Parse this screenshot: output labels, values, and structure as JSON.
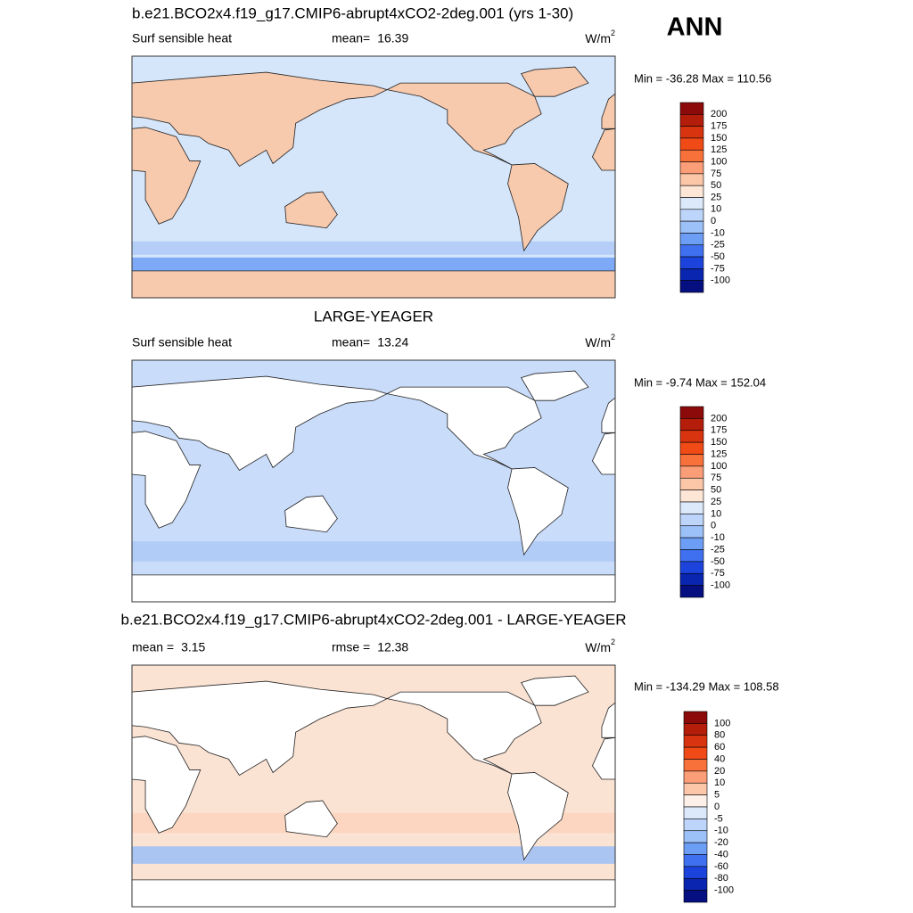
{
  "figure_label": "ANN",
  "panels": [
    {
      "title": "b.e21.BCO2x4.f19_g17.CMIP6-abrupt4xCO2-2deg.001 (yrs 1-30)",
      "variable": "Surf sensible heat",
      "stats": [
        {
          "label": "mean=",
          "value": 16.39
        }
      ],
      "units": {
        "base": "W/m",
        "sup": "2"
      },
      "min_max": "Min = -36.28 Max = 110.56",
      "colorbar": {
        "labels": [
          200,
          175,
          150,
          125,
          100,
          75,
          50,
          25,
          10,
          0,
          -10,
          -25,
          -50,
          -75,
          -100
        ],
        "colors": [
          "#8c0a0a",
          "#b31d0a",
          "#d8340f",
          "#f04a16",
          "#f8703a",
          "#fb9d77",
          "#fcc6a8",
          "#fde6d6",
          "#dbe9fb",
          "#bdd5fa",
          "#9cc0f8",
          "#6d9ef6",
          "#3f70f0",
          "#1c44dc",
          "#0a25b0",
          "#050f80"
        ]
      }
    },
    {
      "title": "LARGE-YEAGER",
      "variable": "Surf sensible heat",
      "stats": [
        {
          "label": "mean=",
          "value": 13.24
        }
      ],
      "units": {
        "base": "W/m",
        "sup": "2"
      },
      "min_max": "Min =  -9.74 Max = 152.04",
      "colorbar": {
        "labels": [
          200,
          175,
          150,
          125,
          100,
          75,
          50,
          25,
          10,
          0,
          -10,
          -25,
          -50,
          -75,
          -100
        ],
        "colors": [
          "#8c0a0a",
          "#b31d0a",
          "#d8340f",
          "#f04a16",
          "#f8703a",
          "#fb9d77",
          "#fcc6a8",
          "#fde6d6",
          "#dbe9fb",
          "#bdd5fa",
          "#9cc0f8",
          "#6d9ef6",
          "#3f70f0",
          "#1c44dc",
          "#0a25b0",
          "#050f80"
        ]
      }
    },
    {
      "title": "b.e21.BCO2x4.f19_g17.CMIP6-abrupt4xCO2-2deg.001 - LARGE-YEAGER",
      "stats": [
        {
          "label": "mean =",
          "value": 3.15
        },
        {
          "label": "rmse =",
          "value": 12.38
        }
      ],
      "units": {
        "base": "W/m",
        "sup": "2"
      },
      "min_max": "Min = -134.29 Max = 108.58",
      "colorbar": {
        "labels": [
          100,
          80,
          60,
          40,
          20,
          10,
          5,
          0,
          -5,
          -10,
          -20,
          -40,
          -60,
          -80,
          -100
        ],
        "colors": [
          "#8c0a0a",
          "#b31d0a",
          "#d8340f",
          "#f04a16",
          "#f8703a",
          "#fb9d77",
          "#fcc6a8",
          "#fdf0e8",
          "#dbe9fb",
          "#bdd5fa",
          "#9cc0f8",
          "#6d9ef6",
          "#3f70f0",
          "#1c44dc",
          "#0a25b0",
          "#050f80"
        ]
      }
    }
  ]
}
